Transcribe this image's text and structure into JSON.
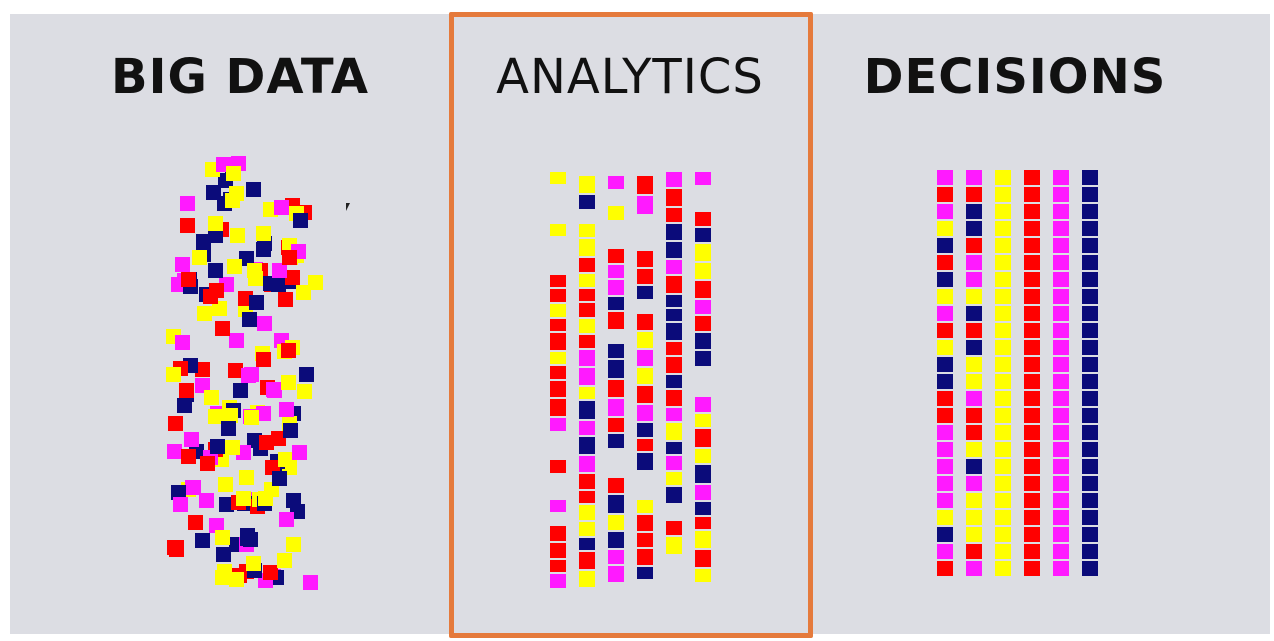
{
  "headings": {
    "big_data": "BIG DATA",
    "analytics": "ANALYTICS",
    "decisions": "DECISIONS"
  },
  "colors": {
    "background": "#dcdde3",
    "highlight_border": "#e57a3c",
    "magenta": "#ff1aff",
    "yellow": "#ffff00",
    "red": "#ff0000",
    "navy": "#0b0b7a"
  },
  "decision_column_colors": [
    "mixed",
    "mixed",
    "yellow",
    "red",
    "magenta",
    "navy"
  ]
}
